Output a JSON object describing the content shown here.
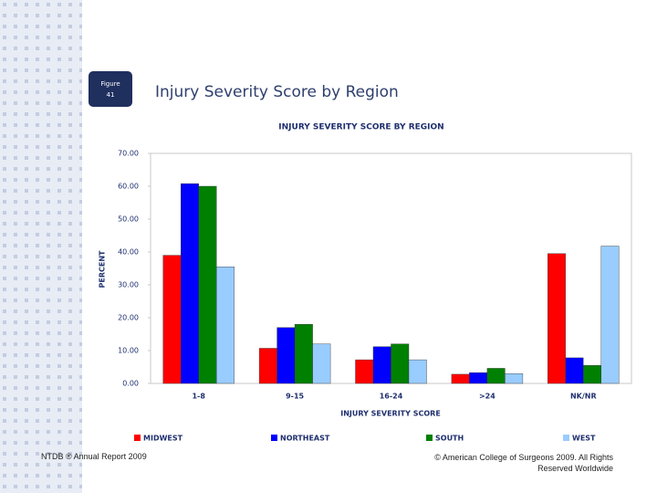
{
  "slide": {
    "figure_label": "Figure",
    "figure_number": "41",
    "heading": "Injury Severity Score by Region",
    "footer_left": "NTDB ® Annual Report 2009",
    "footer_right": "© American College of Surgeons 2009.  All Rights Reserved Worldwide"
  },
  "chart_data": {
    "type": "bar",
    "title": "INJURY SEVERITY SCORE BY REGION",
    "x_label": "INJURY SEVERITY SCORE",
    "y_label": "PERCENT",
    "categories": [
      "1-8",
      "9-15",
      "16-24",
      ">24",
      "NK/NR"
    ],
    "series": [
      {
        "name": "MIDWEST",
        "color": "#ff0000",
        "values": [
          39,
          10.7,
          7.2,
          2.8,
          39.5
        ]
      },
      {
        "name": "NORTHEAST",
        "color": "#0000ff",
        "values": [
          60.8,
          17,
          11.2,
          3.3,
          7.8
        ]
      },
      {
        "name": "SOUTH",
        "color": "#008000",
        "values": [
          60,
          18,
          12,
          4.6,
          5.5
        ]
      },
      {
        "name": "WEST",
        "color": "#99ccff",
        "values": [
          35.5,
          12,
          7.2,
          3,
          41.8
        ]
      }
    ],
    "ylim": [
      0,
      70
    ],
    "yticks": [
      {
        "value": 0,
        "label": "0.00"
      },
      {
        "value": 10,
        "label": "10.00"
      },
      {
        "value": 20,
        "label": "20.00"
      },
      {
        "value": 30,
        "label": "30.00"
      },
      {
        "value": 40,
        "label": "40.00"
      },
      {
        "value": 50,
        "label": "50.00"
      },
      {
        "value": 60,
        "label": "60.00"
      },
      {
        "value": 70,
        "label": "70.00"
      }
    ],
    "legend": "bottom"
  }
}
